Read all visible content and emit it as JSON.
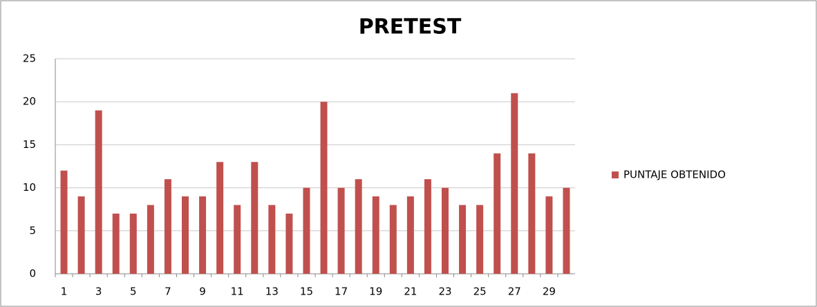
{
  "chart_data": {
    "type": "bar",
    "title": "PRETEST",
    "categories": [
      "1",
      null,
      "3",
      null,
      "5",
      null,
      "7",
      null,
      "9",
      null,
      "11",
      null,
      "13",
      null,
      "15",
      null,
      "17",
      null,
      "19",
      null,
      "21",
      null,
      "23",
      null,
      "25",
      null,
      "27",
      null,
      "29",
      null
    ],
    "series": [
      {
        "name": "PUNTAJE OBTENIDO",
        "color": "#c0504d",
        "values": [
          12,
          9,
          19,
          7,
          7,
          8,
          11,
          9,
          9,
          13,
          8,
          13,
          8,
          7,
          10,
          20,
          10,
          11,
          9,
          8,
          9,
          11,
          10,
          8,
          8,
          14,
          21,
          14,
          9,
          10
        ]
      }
    ],
    "ylim": [
      0,
      25
    ],
    "yticks": [
      0,
      5,
      10,
      15,
      20,
      25
    ],
    "grid": true,
    "legend": "right"
  }
}
